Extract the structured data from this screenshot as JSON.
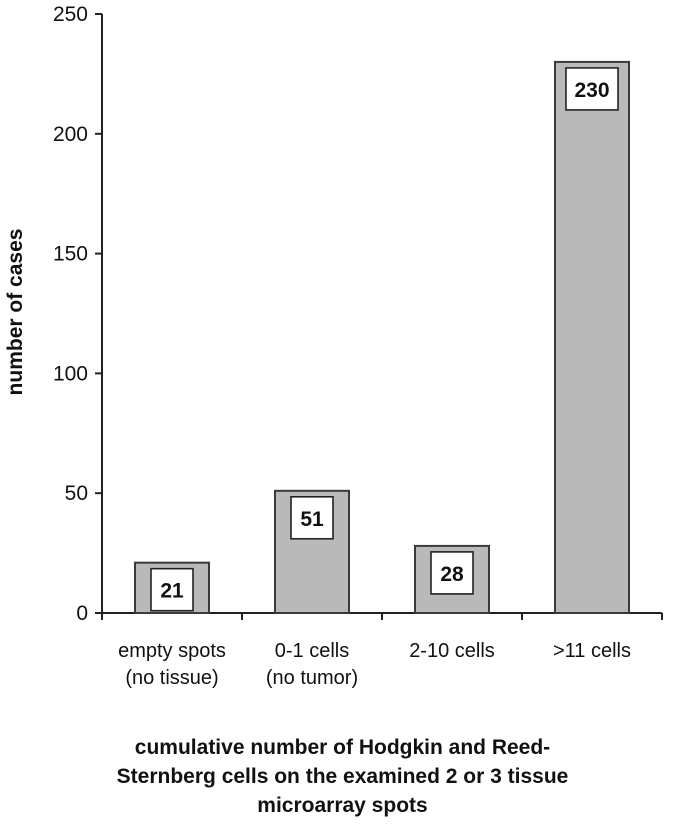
{
  "chart_data": {
    "type": "bar",
    "categories": [
      [
        "empty spots",
        "(no tissue)"
      ],
      [
        "0-1 cells",
        "(no tumor)"
      ],
      [
        "2-10 cells"
      ],
      [
        ">11 cells"
      ]
    ],
    "values": [
      21,
      51,
      28,
      230
    ],
    "data_labels": [
      "21",
      "51",
      "28",
      "230"
    ],
    "ylabel": "number of cases",
    "xlabel": "cumulative number of Hodgkin and Reed-Sternberg cells on the examined 2 or 3 tissue microarray spots",
    "xlabel_lines": [
      "cumulative number of Hodgkin and Reed-",
      "Sternberg cells on the examined 2 or 3 tissue",
      "microarray spots"
    ],
    "ylim": [
      0,
      250
    ],
    "yticks": [
      0,
      50,
      100,
      150,
      200,
      250
    ],
    "grid": false,
    "legend": "none",
    "bar_color": "#b9b9b9"
  }
}
